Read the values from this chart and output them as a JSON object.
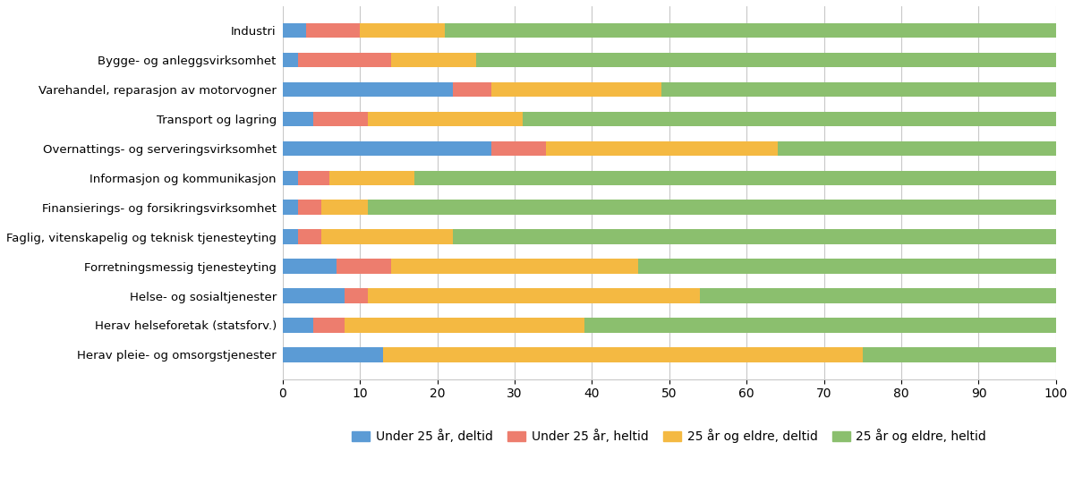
{
  "categories": [
    "Industri",
    "Bygge- og anleggsvirksomhet",
    "Varehandel, reparasjon av motorvogner",
    "Transport og lagring",
    "Overnattings- og serveringsvirksomhet",
    "Informasjon og kommunikasjon",
    "Finansierings- og forsikringsvirksomhet",
    "Faglig, vitenskapelig og teknisk tjenesteyting",
    "Forretningsmessig tjenesteyting",
    "Helse- og sosialtjenester",
    "Herav helseforetak (statsforv.)",
    "Herav pleie- og omsorgstjenester"
  ],
  "under25_deltid": [
    3,
    2,
    22,
    4,
    27,
    2,
    2,
    2,
    7,
    8,
    4,
    13
  ],
  "under25_heltid": [
    7,
    12,
    5,
    7,
    7,
    4,
    3,
    3,
    7,
    3,
    4,
    0
  ],
  "over25_deltid": [
    11,
    11,
    22,
    20,
    30,
    11,
    6,
    17,
    32,
    43,
    31,
    62
  ],
  "over25_heltid": [
    79,
    75,
    51,
    69,
    36,
    83,
    89,
    78,
    54,
    46,
    61,
    25
  ],
  "colors": {
    "under25_deltid": "#5b9bd5",
    "under25_heltid": "#ed7d6e",
    "over25_deltid": "#f4b942",
    "over25_heltid": "#8bbf6e"
  },
  "legend_labels": [
    "Under 25 år, deltid",
    "Under 25 år, heltid",
    "25 år og eldre, deltid",
    "25 år og eldre, heltid"
  ],
  "xlim": [
    0,
    100
  ],
  "xticks": [
    0,
    10,
    20,
    30,
    40,
    50,
    60,
    70,
    80,
    90,
    100
  ],
  "background_color": "#ffffff",
  "grid_color": "#c8c8c8",
  "figsize": [
    12.0,
    5.61
  ],
  "dpi": 100,
  "bar_height": 0.5,
  "ytick_fontsize": 9.5,
  "xtick_fontsize": 10,
  "legend_fontsize": 10
}
